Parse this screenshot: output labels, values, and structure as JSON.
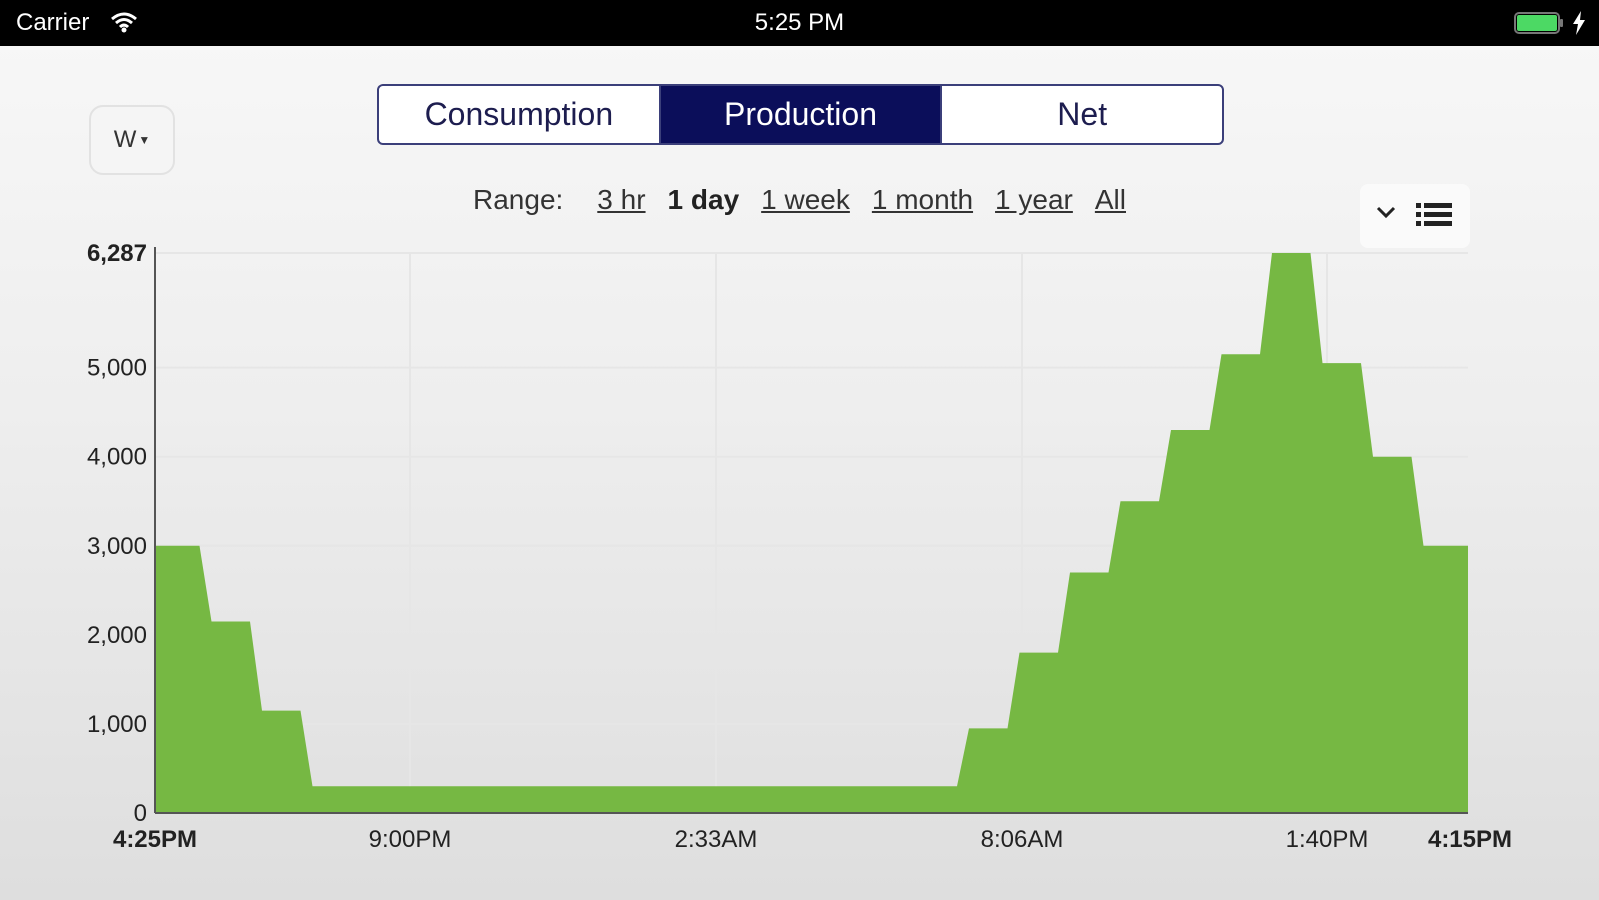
{
  "status_bar": {
    "carrier": "Carrier",
    "time": "5:25 PM"
  },
  "controls": {
    "unit_label": "W",
    "tabs": [
      {
        "label": "Consumption",
        "active": false
      },
      {
        "label": "Production",
        "active": true
      },
      {
        "label": "Net",
        "active": false
      }
    ],
    "range_label": "Range:",
    "range_options": [
      {
        "label": "3 hr",
        "active": false
      },
      {
        "label": "1 day",
        "active": true
      },
      {
        "label": "1 week",
        "active": false
      },
      {
        "label": "1 month",
        "active": false
      },
      {
        "label": "1 year",
        "active": false
      },
      {
        "label": "All",
        "active": false
      }
    ]
  },
  "colors": {
    "accent": "#0b0e5a",
    "area_fill": "#76b843",
    "battery": "#4cd964"
  },
  "icons": [
    "wifi-icon",
    "battery-icon",
    "bolt-icon",
    "chevron-down-icon",
    "list-icon"
  ],
  "chart_data": {
    "type": "area",
    "title": "",
    "xlabel": "",
    "ylabel": "",
    "ylim": [
      0,
      6287
    ],
    "y_ticks": [
      0,
      1000,
      2000,
      3000,
      4000,
      5000,
      6287
    ],
    "y_tick_labels": [
      "0",
      "1,000",
      "2,000",
      "3,000",
      "4,000",
      "5,000",
      "6,287"
    ],
    "x_tick_labels": [
      "4:25PM",
      "9:00PM",
      "2:33AM",
      "8:06AM",
      "1:40PM",
      "4:15PM"
    ],
    "grid": true,
    "legend": "none",
    "series": [
      {
        "values": [
          3000,
          2150,
          1150,
          300,
          300,
          300,
          300,
          300,
          300,
          300,
          300,
          300,
          300,
          300,
          300,
          300,
          950,
          1800,
          2700,
          3500,
          4300,
          5150,
          6287,
          5050,
          4000,
          3000
        ]
      }
    ]
  }
}
